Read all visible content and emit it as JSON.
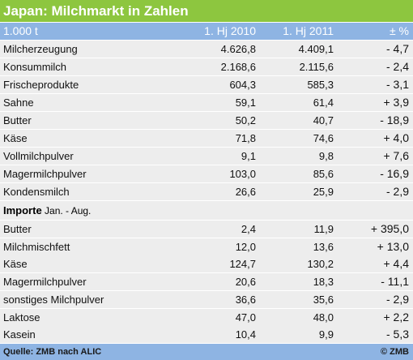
{
  "title": "Japan: Milchmarkt in Zahlen",
  "header": [
    "1.000 t",
    "1. Hj 2010",
    "1. Hj 2011",
    "± %"
  ],
  "rows": [
    [
      "Milcherzeugung",
      "4.626,8",
      "4.409,1",
      "- 4,7"
    ],
    [
      "Konsummilch",
      "2.168,6",
      "2.115,6",
      "- 2,4"
    ],
    [
      "Frischeprodukte",
      "604,3",
      "585,3",
      "- 3,1"
    ],
    [
      "Sahne",
      "59,1",
      "61,4",
      "+ 3,9"
    ],
    [
      "Butter",
      "50,2",
      "40,7",
      "- 18,9"
    ],
    [
      "Käse",
      "71,8",
      "74,6",
      "+ 4,0"
    ],
    [
      "Vollmilchpulver",
      "9,1",
      "9,8",
      "+ 7,6"
    ],
    [
      "Magermilchpulver",
      "103,0",
      "85,6",
      "- 16,9"
    ],
    [
      "Kondensmilch",
      "26,6",
      "25,9",
      "- 2,9"
    ]
  ],
  "imports": {
    "label": "Importe",
    "period": "Jan. - Aug.",
    "rows": [
      [
        "Butter",
        "2,4",
        "11,9",
        "+ 395,0"
      ],
      [
        "Milchmischfett",
        "12,0",
        "13,6",
        "+ 13,0"
      ],
      [
        "Käse",
        "124,7",
        "130,2",
        "+ 4,4"
      ],
      [
        "Magermilchpulver",
        "20,6",
        "18,3",
        "- 11,1"
      ],
      [
        "sonstiges Milchpulver",
        "36,6",
        "35,6",
        "- 2,9"
      ],
      [
        "Laktose",
        "47,0",
        "48,0",
        "+ 2,2"
      ],
      [
        "Kasein",
        "10,4",
        "9,9",
        "- 5,3"
      ]
    ]
  },
  "footer": {
    "source": "Quelle: ZMB nach ALIC",
    "copyright": "© ZMB"
  }
}
